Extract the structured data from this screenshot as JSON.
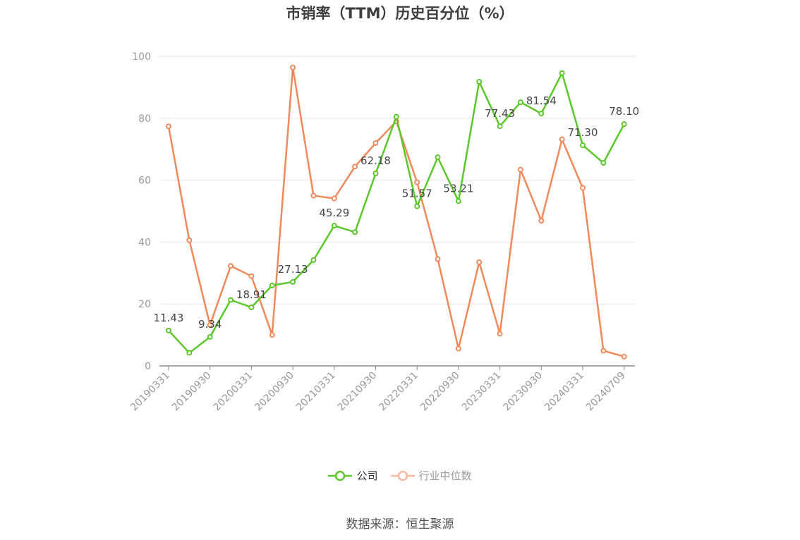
{
  "chart_data": {
    "type": "line",
    "title": "市销率（TTM）历史百分位（%）",
    "ylim": [
      0,
      100
    ],
    "yticks": [
      0,
      20,
      40,
      60,
      80,
      100
    ],
    "x": [
      "20190331",
      "20190630",
      "20190930",
      "20191231",
      "20200331",
      "20200630",
      "20200930",
      "20201231",
      "20210331",
      "20210630",
      "20210930",
      "20211231",
      "20220331",
      "20220630",
      "20220930",
      "20221231",
      "20230331",
      "20230630",
      "20230930",
      "20231231",
      "20240331",
      "20240630",
      "20240709"
    ],
    "xtick_labels": [
      "20190331",
      "20190930",
      "20200331",
      "20200930",
      "20210331",
      "20210930",
      "20220331",
      "20220930",
      "20230331",
      "20230930",
      "20240331",
      "20240709"
    ],
    "grid": true,
    "legend_position": "bottom",
    "series": [
      {
        "name": "公司",
        "color": "#5cc72a",
        "values": [
          11.43,
          4.2,
          9.34,
          21.3,
          18.91,
          26.0,
          27.13,
          34.2,
          45.29,
          43.2,
          62.18,
          80.5,
          51.57,
          67.4,
          53.21,
          91.8,
          77.43,
          85.2,
          81.54,
          94.6,
          71.3,
          65.6,
          78.1
        ],
        "labels": [
          "11.43",
          "",
          "9.34",
          "",
          "18.91",
          "",
          "27.13",
          "",
          "45.29",
          "",
          "62.18",
          "",
          "51.57",
          "",
          "53.21",
          "",
          "77.43",
          "",
          "81.54",
          "",
          "71.30",
          "",
          "78.10"
        ]
      },
      {
        "name": "行业中位数",
        "color": "#f08a5d",
        "values": [
          77.4,
          40.6,
          13.2,
          32.3,
          29.0,
          10.0,
          96.4,
          55.0,
          54.1,
          64.4,
          72.0,
          79.0,
          59.3,
          34.5,
          5.6,
          33.5,
          10.4,
          63.4,
          46.9,
          73.2,
          57.5,
          4.9,
          3.0
        ]
      }
    ]
  },
  "source": "数据来源：恒生聚源"
}
